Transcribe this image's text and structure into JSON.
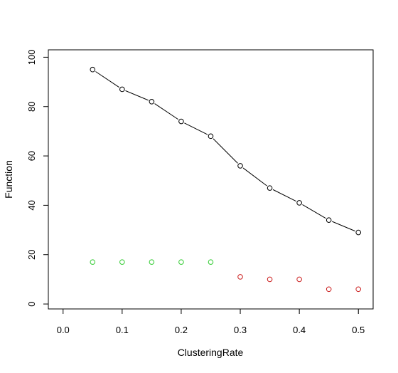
{
  "chart_data": {
    "type": "scatter",
    "title": "",
    "xlabel": "ClusteringRate",
    "ylabel": "Function",
    "xlim": [
      -0.025,
      0.525
    ],
    "ylim": [
      -2,
      103
    ],
    "grid": false,
    "xticks": [
      0.0,
      0.1,
      0.2,
      0.3,
      0.4,
      0.5
    ],
    "xtick_labels": [
      "0.0",
      "0.1",
      "0.2",
      "0.3",
      "0.4",
      "0.5"
    ],
    "yticks": [
      0,
      20,
      40,
      60,
      80,
      100
    ],
    "ytick_labels": [
      "0",
      "20",
      "40",
      "60",
      "80",
      "100"
    ],
    "series": [
      {
        "style": "line-with-open-circles",
        "color": "#000000",
        "x": [
          0.05,
          0.1,
          0.15,
          0.2,
          0.25,
          0.3,
          0.35,
          0.4,
          0.45,
          0.5
        ],
        "y": [
          95,
          87,
          82,
          74,
          68,
          56,
          47,
          41,
          34,
          29
        ]
      },
      {
        "style": "open-circles",
        "color": "#33cc33",
        "x": [
          0.05,
          0.1,
          0.15,
          0.2,
          0.25
        ],
        "y": [
          17,
          17,
          17,
          17,
          17
        ]
      },
      {
        "style": "open-circles",
        "color": "#cc2222",
        "x": [
          0.3,
          0.35,
          0.4,
          0.45,
          0.5
        ],
        "y": [
          11,
          10,
          10,
          6,
          6
        ]
      }
    ]
  }
}
